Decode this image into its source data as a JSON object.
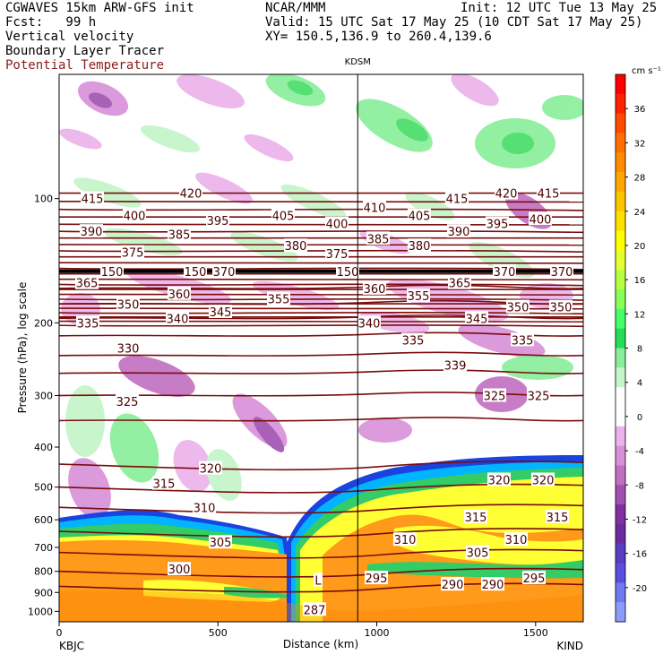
{
  "header": {
    "line1_left": "CGWAVES 15km ARW-GFS init",
    "line1_mid": "NCAR/MMM",
    "line1_right": "Init: 12 UTC Tue 13 May 25",
    "line2_left": "Fcst:   99 h",
    "line2_right": "Valid: 15 UTC Sat 17 May 25 (10 CDT Sat 17 May 25)",
    "line3_left": "Vertical velocity",
    "line3_right": "XY= 150.5,136.9 to 260.4,139.6",
    "line4_left": "Boundary Layer Tracer",
    "line5_left": "Potential Temperature"
  },
  "colors": {
    "theta_line": "#7a0c0c",
    "tropopause": "#000000",
    "text_red": "#8b1a1a"
  },
  "chart_data": {
    "type": "heatmap",
    "title": "",
    "xlabel": "Distance (km)",
    "ylabel": "Pressure (hPa), log scale",
    "xlim": [
      0,
      1650
    ],
    "x_ticks": [
      0,
      500,
      1000,
      1500
    ],
    "y_ticks": [
      100,
      200,
      300,
      400,
      500,
      600,
      700,
      800,
      900,
      1000
    ],
    "y_scale": "log",
    "endpoints": {
      "left": "KBJC",
      "right": "KIND"
    },
    "marker": {
      "label": "KDSM",
      "distance_km": 940
    },
    "colorbar": {
      "unit": "cm s⁻¹",
      "ticks": [
        36,
        32,
        28,
        24,
        20,
        16,
        12,
        8,
        4,
        0,
        -4,
        -8,
        -12,
        -16,
        -20
      ],
      "colors": [
        "#ff0000",
        "#ff2200",
        "#ff4a00",
        "#ff6e00",
        "#ff8c00",
        "#ffa600",
        "#ffc400",
        "#ffe000",
        "#ffff00",
        "#e6ff33",
        "#b8ff44",
        "#88ff55",
        "#44ff66",
        "#22dd55",
        "#88ee99",
        "#c4f5c8",
        "#ffffff",
        "#ffffff",
        "#ecb2ec",
        "#d890d8",
        "#c070c0",
        "#a050b0",
        "#8030a0",
        "#6a2aa0",
        "#5c3cc0",
        "#5a4de0",
        "#6f79f0",
        "#8a9cf8"
      ]
    },
    "theta_labels": [
      {
        "v": "415",
        "x": 103,
        "p": 100
      },
      {
        "v": "420",
        "x": 213,
        "p": 97
      },
      {
        "v": "400",
        "x": 150,
        "p": 110
      },
      {
        "v": "390",
        "x": 102,
        "p": 120
      },
      {
        "v": "385",
        "x": 200,
        "p": 122
      },
      {
        "v": "395",
        "x": 243,
        "p": 113
      },
      {
        "v": "375",
        "x": 148,
        "p": 135
      },
      {
        "v": "365",
        "x": 97,
        "p": 160
      },
      {
        "v": "150",
        "x": 125,
        "p": 150
      },
      {
        "v": "150",
        "x": 218,
        "p": 150
      },
      {
        "v": "370",
        "x": 250,
        "p": 150
      },
      {
        "v": "360",
        "x": 200,
        "p": 170
      },
      {
        "v": "350",
        "x": 143,
        "p": 180
      },
      {
        "v": "340",
        "x": 198,
        "p": 195
      },
      {
        "v": "345",
        "x": 246,
        "p": 188
      },
      {
        "v": "335",
        "x": 98,
        "p": 200
      },
      {
        "v": "330",
        "x": 143,
        "p": 230
      },
      {
        "v": "325",
        "x": 142,
        "p": 310
      },
      {
        "v": "405",
        "x": 316,
        "p": 110
      },
      {
        "v": "400",
        "x": 376,
        "p": 115
      },
      {
        "v": "380",
        "x": 330,
        "p": 130
      },
      {
        "v": "375",
        "x": 376,
        "p": 136
      },
      {
        "v": "150",
        "x": 388,
        "p": 150
      },
      {
        "v": "355",
        "x": 311,
        "p": 175
      },
      {
        "v": "410",
        "x": 418,
        "p": 105
      },
      {
        "v": "405",
        "x": 468,
        "p": 110
      },
      {
        "v": "415",
        "x": 510,
        "p": 100
      },
      {
        "v": "420",
        "x": 565,
        "p": 97
      },
      {
        "v": "415",
        "x": 612,
        "p": 97
      },
      {
        "v": "385",
        "x": 422,
        "p": 125
      },
      {
        "v": "380",
        "x": 468,
        "p": 130
      },
      {
        "v": "390",
        "x": 512,
        "p": 120
      },
      {
        "v": "395",
        "x": 555,
        "p": 115
      },
      {
        "v": "400",
        "x": 603,
        "p": 112
      },
      {
        "v": "370",
        "x": 563,
        "p": 150
      },
      {
        "v": "370",
        "x": 627,
        "p": 150
      },
      {
        "v": "360",
        "x": 418,
        "p": 165
      },
      {
        "v": "355",
        "x": 467,
        "p": 172
      },
      {
        "v": "365",
        "x": 513,
        "p": 160
      },
      {
        "v": "350",
        "x": 578,
        "p": 183
      },
      {
        "v": "350",
        "x": 626,
        "p": 183
      },
      {
        "v": "340",
        "x": 412,
        "p": 200
      },
      {
        "v": "345",
        "x": 532,
        "p": 195
      },
      {
        "v": "335",
        "x": 461,
        "p": 220
      },
      {
        "v": "335",
        "x": 583,
        "p": 220
      },
      {
        "v": "339",
        "x": 508,
        "p": 253
      },
      {
        "v": "325",
        "x": 552,
        "p": 300
      },
      {
        "v": "325",
        "x": 601,
        "p": 300
      },
      {
        "v": "320",
        "x": 235,
        "p": 450
      },
      {
        "v": "315",
        "x": 183,
        "p": 490
      },
      {
        "v": "310",
        "x": 228,
        "p": 560
      },
      {
        "v": "305",
        "x": 246,
        "p": 680
      },
      {
        "v": "300",
        "x": 200,
        "p": 790
      },
      {
        "v": "L",
        "x": 355,
        "p": 840
      },
      {
        "v": "295",
        "x": 420,
        "p": 830
      },
      {
        "v": "290",
        "x": 505,
        "p": 860
      },
      {
        "v": "290",
        "x": 550,
        "p": 860
      },
      {
        "v": "295",
        "x": 596,
        "p": 830
      },
      {
        "v": "320",
        "x": 557,
        "p": 480
      },
      {
        "v": "320",
        "x": 606,
        "p": 480
      },
      {
        "v": "315",
        "x": 531,
        "p": 590
      },
      {
        "v": "315",
        "x": 622,
        "p": 590
      },
      {
        "v": "310",
        "x": 452,
        "p": 670
      },
      {
        "v": "310",
        "x": 576,
        "p": 670
      },
      {
        "v": "305",
        "x": 533,
        "p": 720
      },
      {
        "v": "287",
        "x": 351,
        "p": 990
      }
    ]
  }
}
